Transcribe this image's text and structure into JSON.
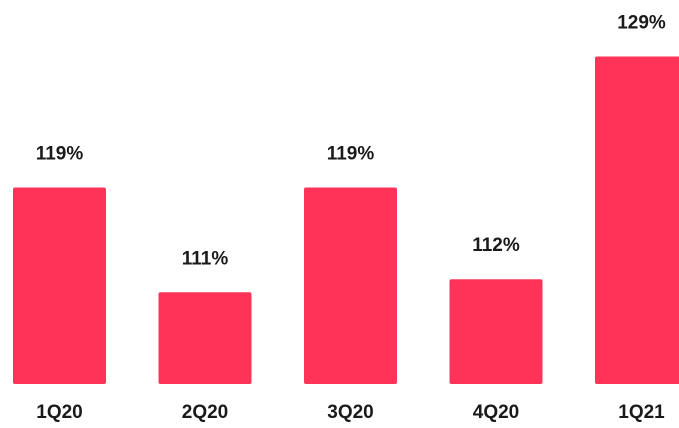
{
  "chart_data": {
    "type": "bar",
    "categories": [
      "1Q20",
      "2Q20",
      "3Q20",
      "4Q20",
      "1Q21"
    ],
    "values": [
      119,
      111,
      119,
      112,
      129
    ],
    "data_labels": [
      "119%",
      "111%",
      "119%",
      "112%",
      "129%"
    ],
    "title": "",
    "xlabel": "",
    "ylabel": "",
    "ylim": [
      104,
      130
    ],
    "grid": false,
    "colors": {
      "bar": "#ff3358"
    }
  }
}
